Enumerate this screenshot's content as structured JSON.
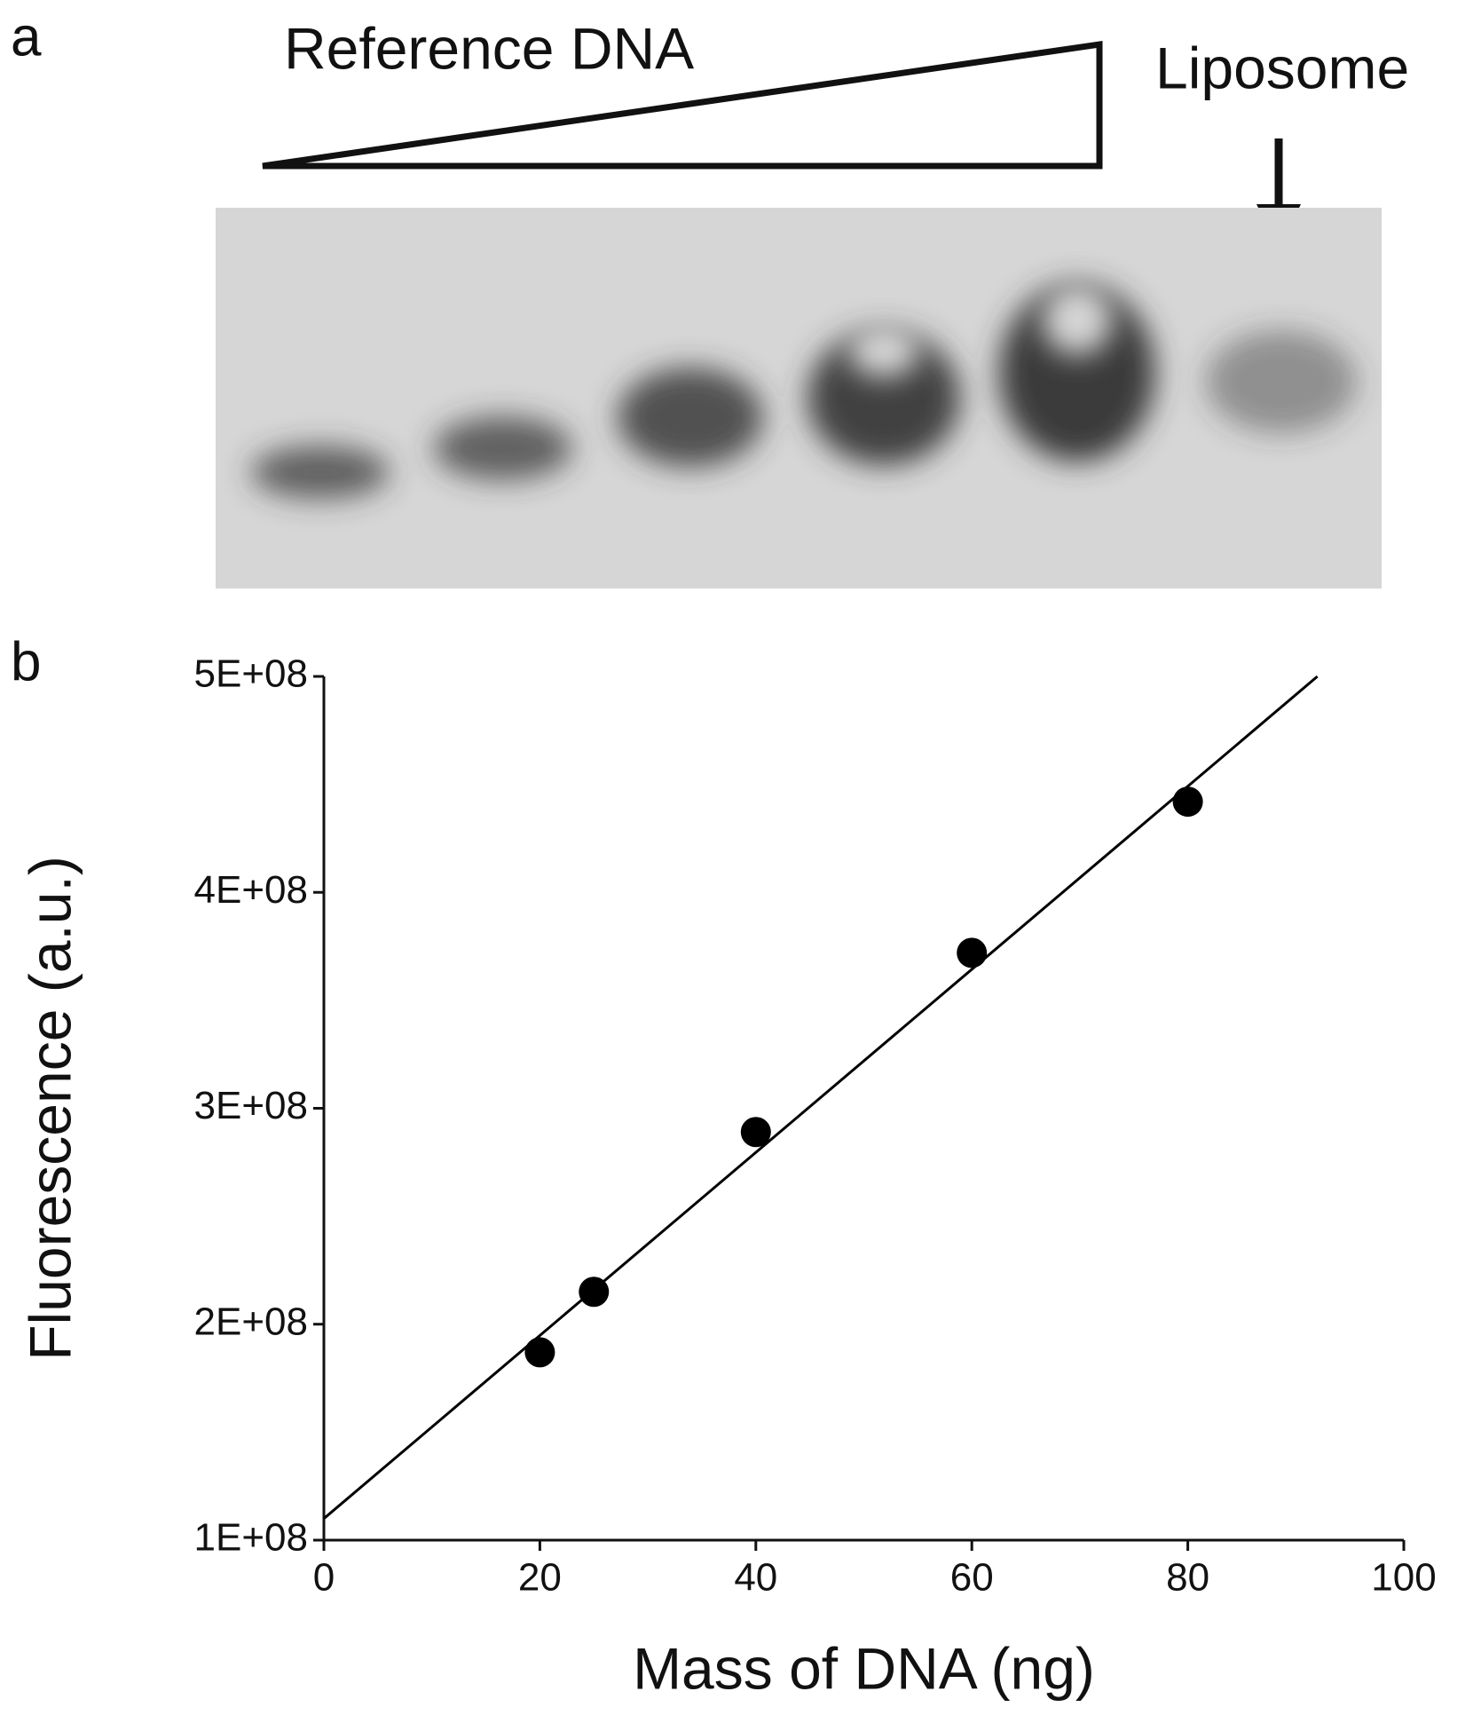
{
  "panel_labels": [
    "a",
    "b"
  ],
  "gel": {
    "ramp_label": "Reference DNA",
    "arrow_label": "Liposome"
  },
  "chart_data": {
    "type": "scatter",
    "xlabel": "Mass of DNA (ng)",
    "ylabel": "Fluorescence (a.u.)",
    "xlim": [
      0,
      100
    ],
    "xticks": [
      0,
      20,
      40,
      60,
      80,
      100
    ],
    "ylim": [
      100000000,
      500000000
    ],
    "yticks": [
      {
        "value": 100000000,
        "label": "1E+08"
      },
      {
        "value": 200000000,
        "label": "2E+08"
      },
      {
        "value": 300000000,
        "label": "3E+08"
      },
      {
        "value": 400000000,
        "label": "4E+08"
      },
      {
        "value": 500000000,
        "label": "5E+08"
      }
    ],
    "series": [
      {
        "mode": "markers",
        "color": "#000000",
        "x": [
          20,
          25,
          40,
          60,
          80
        ],
        "values": [
          187000000,
          215000000,
          289000000,
          372000000,
          442000000
        ]
      },
      {
        "mode": "line",
        "color": "#000000",
        "x": [
          0,
          92
        ],
        "values": [
          110000000,
          500000000
        ]
      }
    ]
  }
}
